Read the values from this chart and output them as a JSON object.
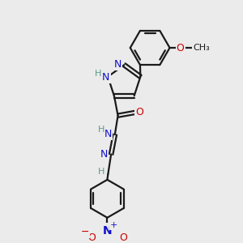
{
  "bg_color": "#ebebeb",
  "bond_color": "#1a1a1a",
  "bond_width": 1.6,
  "atoms": {
    "N_blue": "#1010cc",
    "O_red": "#cc0000",
    "C_black": "#1a1a1a",
    "H_teal": "#5a9a8a"
  },
  "xlim": [
    -1.6,
    2.8
  ],
  "ylim": [
    -1.2,
    4.6
  ]
}
